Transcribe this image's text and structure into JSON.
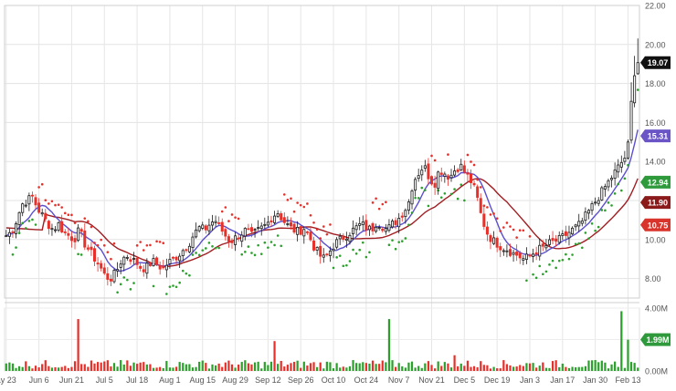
{
  "chart_data": [
    {
      "type": "candlestick",
      "panel": "price",
      "x_ticks": [
        "ay 23",
        "Jun 6",
        "Jun 21",
        "Jul 5",
        "Jul 18",
        "Aug 1",
        "Aug 15",
        "Aug 29",
        "Sep 12",
        "Sep 26",
        "Oct 10",
        "Oct 24",
        "Nov 7",
        "Nov 21",
        "Dec 5",
        "Dec 19",
        "Jan 3",
        "Jan 17",
        "Jan 30",
        "Feb 13"
      ],
      "x_tick_index": [
        0,
        10,
        20,
        30,
        40,
        50,
        60,
        70,
        80,
        90,
        100,
        110,
        120,
        130,
        140,
        150,
        160,
        170,
        180,
        190
      ],
      "y_ticks": [
        8.0,
        10.0,
        12.0,
        14.0,
        16.0,
        18.0,
        20.0,
        22.0
      ],
      "y_tick_labels": [
        "8.00",
        "10.00",
        "12.00",
        "14.00",
        "16.00",
        "18.00",
        "20.00",
        "22.00"
      ],
      "ylim": [
        7.0,
        22.0
      ],
      "grid": true,
      "close_key": [
        10.2,
        10.4,
        11.0,
        11.8,
        12.0,
        12.2,
        11.6,
        11.2,
        10.8,
        10.5,
        10.8,
        10.4,
        10.2,
        10.0,
        10.5,
        9.8,
        9.4,
        9.0,
        8.6,
        8.1,
        8.0,
        8.3,
        8.9,
        9.2,
        9.0,
        8.8,
        8.5,
        8.6,
        8.9,
        8.7,
        8.5,
        8.8,
        9.0,
        9.2,
        9.5,
        9.8,
        10.3,
        10.6,
        10.5,
        10.8,
        11.0,
        10.6,
        10.2,
        9.9,
        10.1,
        10.3,
        10.5,
        10.2,
        10.4,
        10.6,
        10.8,
        11.2,
        11.4,
        11.0,
        10.7,
        10.5,
        10.4,
        10.6,
        10.2,
        9.6,
        9.2,
        9.0,
        9.4,
        9.8,
        10.0,
        10.2,
        10.4,
        10.6,
        10.8,
        10.6,
        10.5,
        10.9,
        10.7,
        10.5,
        10.8,
        11.0,
        11.4,
        11.8,
        13.0,
        13.4,
        13.8,
        13.2,
        12.8,
        13.6,
        13.4,
        13.2,
        13.6,
        13.8,
        13.4,
        13.0,
        12.4,
        11.2,
        10.4,
        10.0,
        9.8,
        9.6,
        9.5,
        9.3,
        9.2,
        9.0,
        9.1,
        9.3,
        9.5,
        9.6,
        9.8,
        9.9,
        10.0,
        10.2,
        10.4,
        10.6,
        10.8,
        11.2,
        11.6,
        12.0,
        12.4,
        12.8,
        13.2,
        13.6,
        14.0,
        14.4,
        18.0,
        19.07
      ],
      "sma_fast_color": "#5a4fcf",
      "sma_slow_color": "#a11d21",
      "sar_up_color": "#2ca02c",
      "sar_down_color": "#e8302a",
      "candle_up_color": "#1b1b1b",
      "candle_down_color": "#e8302a",
      "price_tags": [
        {
          "label": "19.07",
          "value": 19.07,
          "color": "#111111"
        },
        {
          "label": "15.31",
          "value": 15.31,
          "color": "#6a54c6"
        },
        {
          "label": "12.94",
          "value": 12.94,
          "color": "#2f9a3b"
        },
        {
          "label": "11.90",
          "value": 11.9,
          "color": "#8b1a1a"
        },
        {
          "label": "10.75",
          "value": 10.75,
          "color": "#d8342b"
        }
      ]
    },
    {
      "type": "bar",
      "panel": "volume",
      "y_tick_labels": [
        "0.00M",
        "2.00M",
        "4.00M"
      ],
      "y_ticks": [
        0,
        2,
        4
      ],
      "ylim": [
        0,
        4
      ],
      "last_value_tag": {
        "label": "1.99M",
        "value": 1.99,
        "color": "#2f9a3b"
      },
      "up_color": "#2ca02c",
      "down_color": "#e8302a",
      "spikes": [
        {
          "index": 22,
          "value": 3.3,
          "direction": "down"
        },
        {
          "index": 82,
          "value": 1.9,
          "direction": "down"
        },
        {
          "index": 117,
          "value": 3.3,
          "direction": "up"
        },
        {
          "index": 137,
          "value": 1.0,
          "direction": "down"
        },
        {
          "index": 188,
          "value": 3.8,
          "direction": "up"
        },
        {
          "index": 190,
          "value": 1.99,
          "direction": "up"
        }
      ]
    }
  ]
}
